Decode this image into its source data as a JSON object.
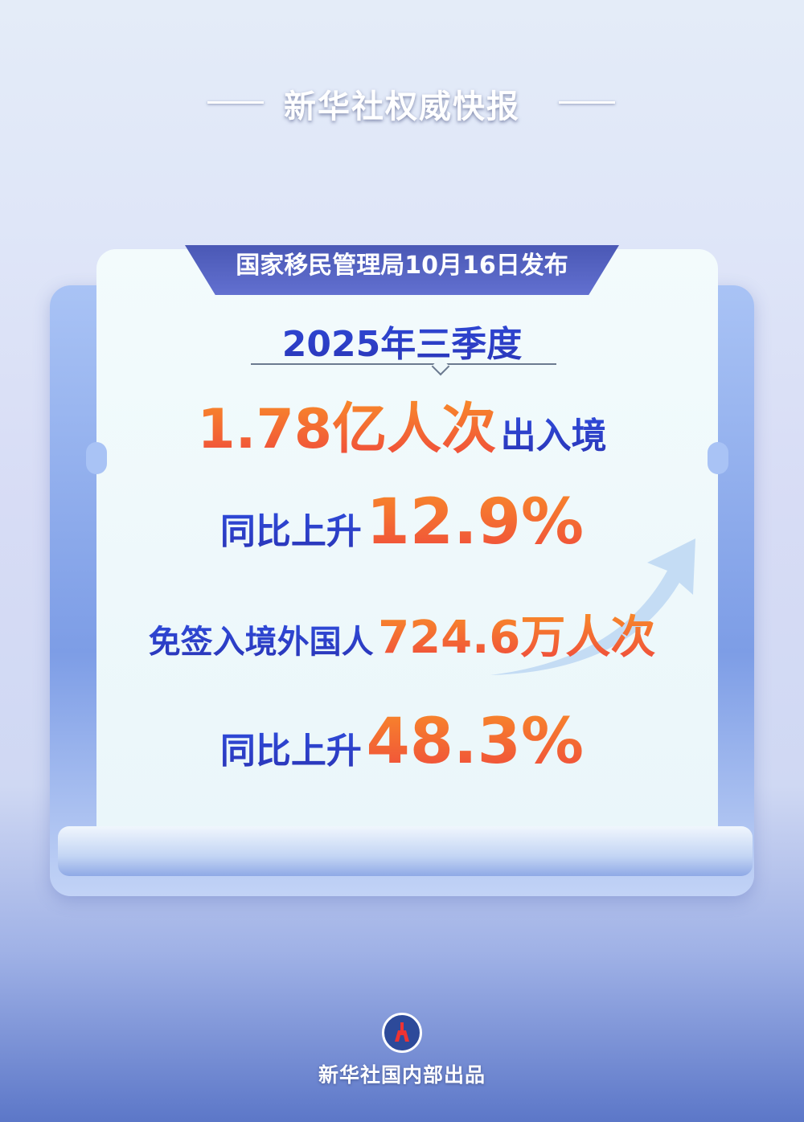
{
  "header": {
    "title": "新华社权威快报"
  },
  "tab": {
    "text": "国家移民管理局10月16日发布"
  },
  "period": "2025年三季度",
  "stats": [
    {
      "value": "1.78亿人次",
      "label": "出入境"
    },
    {
      "label": "同比上升",
      "value": "12.9%"
    },
    {
      "label": "免签入境外国人",
      "value": "724.6万人次"
    },
    {
      "label": "同比上升",
      "value": "48.3%"
    }
  ],
  "footer": {
    "logo": "XINHUA",
    "text": "新华社国内部出品"
  },
  "colors": {
    "accent_blue": "#2f4ad8",
    "accent_orange": "#f26a33",
    "tab": "#5563c0"
  }
}
